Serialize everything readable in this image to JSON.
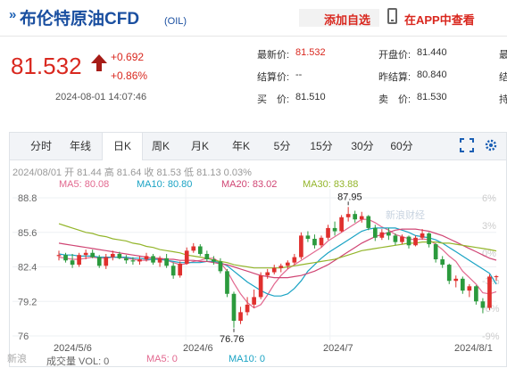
{
  "header": {
    "title": "布伦特原油CFD",
    "code": "(OIL)",
    "add_watch": "添加自选",
    "app_link": "在APP中查看"
  },
  "quote": {
    "price": "81.532",
    "change": "+0.692",
    "change_pct": "+0.86%",
    "time": "2024-08-01 14:07:46",
    "fields": [
      {
        "label": "最新价:",
        "value": "81.532",
        "red": true
      },
      {
        "label": "开盘价:",
        "value": "81.440",
        "red": false
      },
      {
        "label": "结算价:",
        "value": "--",
        "red": false
      },
      {
        "label": "昨结算:",
        "value": "80.840",
        "red": false
      },
      {
        "label": "买　价:",
        "value": "81.510",
        "red": false
      },
      {
        "label": "卖　价:",
        "value": "81.530",
        "red": false
      }
    ],
    "more_col": [
      "最",
      "结",
      "持"
    ]
  },
  "tabs": [
    "分时",
    "年线",
    "日K",
    "周K",
    "月K",
    "年K",
    "5分",
    "15分",
    "30分",
    "60分"
  ],
  "active_tab": "日K",
  "ohlc_line": "2024/08/01 开 81.44 高 81.64 收 81.53 低 81.13 0.03%",
  "ma": [
    {
      "label": "MA5: 80.08",
      "color": "#e2688f"
    },
    {
      "label": "MA10: 80.80",
      "color": "#1aa3c4"
    },
    {
      "label": "MA20: 83.02",
      "color": "#d04574"
    },
    {
      "label": "MA30: 83.88",
      "color": "#93b52a"
    }
  ],
  "watermark": "新浪财经",
  "bottom_watermark": "新浪",
  "volume": {
    "label": "成交量 VOL: 0",
    "ma5": "MA5: 0",
    "ma10": "MA10: 0"
  },
  "colors": {
    "up": "#e0302e",
    "down": "#2b9a3d",
    "accent": "#d9281f",
    "link": "#1a4fa0"
  },
  "chart_data": {
    "type": "candlestick",
    "yticks": [
      "88.8",
      "85.6",
      "82.4",
      "79.2",
      "76"
    ],
    "right_ticks": [
      "6%",
      "3%",
      "0%",
      "-3%",
      "-6%",
      "-9%"
    ],
    "xticks": [
      "2024/5/6",
      "2024/6",
      "2024/7",
      "2024/8/1"
    ],
    "ylim": [
      76,
      88.8
    ],
    "high_label": "87.95",
    "low_label": "76.76",
    "candles": [
      [
        83.4,
        83.9,
        83.0,
        83.5
      ],
      [
        83.5,
        83.7,
        82.8,
        83.0
      ],
      [
        83.0,
        83.6,
        82.3,
        82.6
      ],
      [
        82.6,
        83.7,
        82.4,
        83.5
      ],
      [
        83.5,
        84.0,
        83.1,
        83.7
      ],
      [
        83.7,
        84.0,
        83.2,
        83.3
      ],
      [
        83.3,
        83.5,
        82.3,
        82.5
      ],
      [
        82.5,
        83.6,
        82.2,
        83.3
      ],
      [
        83.3,
        83.9,
        83.0,
        83.6
      ],
      [
        83.6,
        83.8,
        83.1,
        83.2
      ],
      [
        83.2,
        83.5,
        82.7,
        83.0
      ],
      [
        83.0,
        83.3,
        82.6,
        82.9
      ],
      [
        82.9,
        83.4,
        82.6,
        83.1
      ],
      [
        83.1,
        83.7,
        82.9,
        83.4
      ],
      [
        83.4,
        83.6,
        82.6,
        82.8
      ],
      [
        82.8,
        83.4,
        82.4,
        83.2
      ],
      [
        83.2,
        83.6,
        82.3,
        82.5
      ],
      [
        82.5,
        82.8,
        81.3,
        81.6
      ],
      [
        81.6,
        82.9,
        81.4,
        82.7
      ],
      [
        82.7,
        84.2,
        82.6,
        83.9
      ],
      [
        83.9,
        84.6,
        83.7,
        84.3
      ],
      [
        84.3,
        84.5,
        83.4,
        83.6
      ],
      [
        83.6,
        83.9,
        82.9,
        83.1
      ],
      [
        83.1,
        83.4,
        82.6,
        82.9
      ],
      [
        82.9,
        83.2,
        81.8,
        82.0
      ],
      [
        82.0,
        82.2,
        79.6,
        79.9
      ],
      [
        79.9,
        80.1,
        76.76,
        77.4
      ],
      [
        77.4,
        78.7,
        77.1,
        78.2
      ],
      [
        78.2,
        79.6,
        77.9,
        78.9
      ],
      [
        78.9,
        80.3,
        78.6,
        79.6
      ],
      [
        79.6,
        81.9,
        79.4,
        81.6
      ],
      [
        81.6,
        82.2,
        81.3,
        81.9
      ],
      [
        81.9,
        82.6,
        81.7,
        82.3
      ],
      [
        82.3,
        82.7,
        81.9,
        82.5
      ],
      [
        82.5,
        83.0,
        82.2,
        82.8
      ],
      [
        82.8,
        83.6,
        82.6,
        83.3
      ],
      [
        83.3,
        85.6,
        83.1,
        85.3
      ],
      [
        85.3,
        85.7,
        84.7,
        85.0
      ],
      [
        85.0,
        85.4,
        84.1,
        84.4
      ],
      [
        84.4,
        85.3,
        84.2,
        85.1
      ],
      [
        85.1,
        86.3,
        84.9,
        86.0
      ],
      [
        86.0,
        86.6,
        85.3,
        85.7
      ],
      [
        85.7,
        87.2,
        85.6,
        87.0
      ],
      [
        87.0,
        87.95,
        86.6,
        87.3
      ],
      [
        87.3,
        87.6,
        86.5,
        86.8
      ],
      [
        86.8,
        87.5,
        86.5,
        87.1
      ],
      [
        87.1,
        87.2,
        85.8,
        86.0
      ],
      [
        86.0,
        86.3,
        84.8,
        85.1
      ],
      [
        85.1,
        85.9,
        84.9,
        85.6
      ],
      [
        85.6,
        86.0,
        84.9,
        85.3
      ],
      [
        85.3,
        85.5,
        84.4,
        84.7
      ],
      [
        84.7,
        85.4,
        84.5,
        85.2
      ],
      [
        85.2,
        85.3,
        84.1,
        84.4
      ],
      [
        84.4,
        85.3,
        84.3,
        85.1
      ],
      [
        85.1,
        85.9,
        84.9,
        85.5
      ],
      [
        85.5,
        85.6,
        84.2,
        84.5
      ],
      [
        84.5,
        84.6,
        82.8,
        83.1
      ],
      [
        83.1,
        83.4,
        82.3,
        82.6
      ],
      [
        82.6,
        82.7,
        80.8,
        81.1
      ],
      [
        81.1,
        81.6,
        80.5,
        81.3
      ],
      [
        81.3,
        81.5,
        79.9,
        80.2
      ],
      [
        80.2,
        80.8,
        79.6,
        80.6
      ],
      [
        80.6,
        80.7,
        78.9,
        79.2
      ],
      [
        79.2,
        79.5,
        78.1,
        78.6
      ],
      [
        78.6,
        81.7,
        78.4,
        81.5
      ],
      [
        81.5,
        81.64,
        81.13,
        81.53
      ]
    ],
    "series": [
      {
        "name": "MA5",
        "color": "#e2688f",
        "values": [
          83.3,
          83.2,
          83.1,
          83.1,
          83.2,
          83.3,
          83.2,
          83.2,
          83.3,
          83.3,
          83.2,
          83.1,
          83.0,
          83.0,
          83.1,
          83.1,
          83.0,
          82.8,
          82.6,
          82.7,
          82.9,
          83.0,
          83.2,
          83.2,
          82.8,
          82.0,
          80.9,
          79.9,
          79.1,
          78.6,
          78.9,
          79.8,
          80.8,
          81.6,
          82.2,
          82.6,
          83.0,
          83.4,
          83.8,
          84.2,
          84.8,
          85.2,
          85.6,
          86.0,
          86.4,
          86.8,
          86.8,
          86.5,
          86.1,
          85.8,
          85.4,
          85.2,
          85.0,
          84.9,
          85.0,
          84.9,
          84.5,
          84.0,
          83.4,
          82.9,
          82.0,
          81.4,
          80.8,
          80.0,
          79.9,
          80.1
        ]
      },
      {
        "name": "MA10",
        "color": "#1aa3c4",
        "values": [
          83.6,
          83.5,
          83.5,
          83.4,
          83.4,
          83.4,
          83.3,
          83.3,
          83.3,
          83.3,
          83.3,
          83.2,
          83.2,
          83.1,
          83.1,
          83.1,
          83.0,
          82.9,
          82.8,
          82.8,
          82.8,
          82.8,
          82.9,
          82.9,
          82.8,
          82.5,
          82.0,
          81.5,
          81.0,
          80.6,
          80.2,
          79.9,
          79.7,
          79.7,
          79.9,
          80.4,
          81.1,
          82.0,
          82.6,
          83.2,
          83.7,
          84.1,
          84.5,
          84.9,
          85.3,
          85.7,
          85.9,
          86.0,
          86.0,
          86.0,
          86.0,
          85.8,
          85.6,
          85.3,
          85.2,
          85.1,
          84.9,
          84.6,
          84.2,
          83.8,
          83.4,
          83.0,
          82.6,
          82.2,
          81.8,
          80.8
        ]
      },
      {
        "name": "MA20",
        "color": "#d04574",
        "values": [
          84.6,
          84.5,
          84.4,
          84.3,
          84.2,
          84.1,
          84.0,
          83.9,
          83.8,
          83.7,
          83.6,
          83.5,
          83.4,
          83.3,
          83.2,
          83.2,
          83.1,
          83.1,
          83.0,
          83.0,
          83.0,
          82.9,
          82.9,
          82.8,
          82.7,
          82.6,
          82.4,
          82.2,
          82.0,
          81.8,
          81.6,
          81.5,
          81.4,
          81.4,
          81.4,
          81.5,
          81.6,
          81.8,
          82.0,
          82.3,
          82.6,
          83.0,
          83.4,
          83.8,
          84.2,
          84.6,
          84.9,
          85.2,
          85.4,
          85.6,
          85.8,
          85.9,
          85.9,
          85.9,
          85.8,
          85.7,
          85.5,
          85.3,
          85.0,
          84.7,
          84.4,
          84.1,
          83.8,
          83.5,
          83.2,
          83.02
        ]
      },
      {
        "name": "MA30",
        "color": "#93b52a",
        "values": [
          86.4,
          86.2,
          86.0,
          85.8,
          85.6,
          85.5,
          85.3,
          85.2,
          85.0,
          84.9,
          84.8,
          84.6,
          84.5,
          84.3,
          84.2,
          84.0,
          83.9,
          83.8,
          83.7,
          83.5,
          83.4,
          83.3,
          83.2,
          83.0,
          82.9,
          82.8,
          82.6,
          82.5,
          82.4,
          82.3,
          82.3,
          82.3,
          82.3,
          82.3,
          82.4,
          82.5,
          82.6,
          82.7,
          82.8,
          82.9,
          83.0,
          83.1,
          83.3,
          83.5,
          83.7,
          83.9,
          84.0,
          84.1,
          84.2,
          84.3,
          84.4,
          84.5,
          84.6,
          84.6,
          84.7,
          84.7,
          84.7,
          84.6,
          84.6,
          84.5,
          84.4,
          84.3,
          84.2,
          84.1,
          84.0,
          83.88
        ]
      }
    ]
  }
}
